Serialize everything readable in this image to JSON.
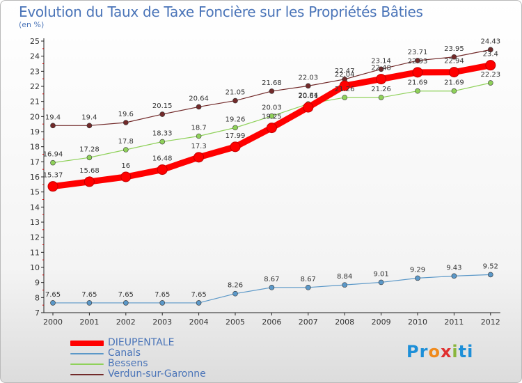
{
  "title": "Evolution du Taux de Taxe Foncière sur les Propriétés Bâties",
  "subtitle": "(en %)",
  "logo": [
    "Pr",
    "o",
    "x",
    "i",
    "ti"
  ],
  "chart_data": {
    "type": "line",
    "x": [
      "2000",
      "2001",
      "2002",
      "2003",
      "2004",
      "2005",
      "2006",
      "2007",
      "2008",
      "2009",
      "2010",
      "2011",
      "2012"
    ],
    "ylim": [
      7,
      25
    ],
    "yticks": [
      "7",
      "8",
      "9",
      "10",
      "11",
      "12",
      "13",
      "14",
      "15",
      "16",
      "17",
      "18",
      "19",
      "20",
      "21",
      "22",
      "23",
      "24",
      "25"
    ],
    "grid": false,
    "legend_position": "bottom-left",
    "series": [
      {
        "name": "DIEUPENTALE",
        "color": "#ff0000",
        "values": [
          15.37,
          15.68,
          16,
          16.48,
          17.3,
          17.99,
          19.25,
          20.61,
          22.04,
          22.48,
          22.93,
          22.94,
          23.4
        ],
        "labels": [
          "15.37",
          "15.68",
          "16",
          "16.48",
          "17.3",
          "17.99",
          "19.25",
          "20.61",
          "22.04",
          "22.48",
          "22.93",
          "22.94",
          "23.4"
        ]
      },
      {
        "name": "Canals",
        "color": "#5b98c8",
        "values": [
          7.65,
          7.65,
          7.65,
          7.65,
          7.65,
          8.26,
          8.67,
          8.67,
          8.84,
          9.01,
          9.29,
          9.43,
          9.52
        ],
        "labels": [
          "7.65",
          "7.65",
          "7.65",
          "7.65",
          "7.65",
          "8.26",
          "8.67",
          "8.67",
          "8.84",
          "9.01",
          "9.29",
          "9.43",
          "9.52"
        ]
      },
      {
        "name": "Bessens",
        "color": "#8fd15a",
        "values": [
          16.94,
          17.28,
          17.8,
          18.33,
          18.7,
          19.26,
          20.03,
          20.84,
          21.26,
          21.26,
          21.69,
          21.69,
          22.23
        ],
        "labels": [
          "16.94",
          "17.28",
          "17.8",
          "18.33",
          "18.7",
          "19.26",
          "20.03",
          "20.84",
          "21.26",
          "21.26",
          "21.69",
          "21.69",
          "22.23"
        ]
      },
      {
        "name": "Verdun-sur-Garonne",
        "color": "#722a2a",
        "values": [
          19.4,
          19.4,
          19.6,
          20.15,
          20.64,
          21.05,
          21.68,
          22.03,
          22.47,
          23.14,
          23.71,
          23.95,
          24.43
        ],
        "labels": [
          "19.4",
          "19.4",
          "19.6",
          "20.15",
          "20.64",
          "21.05",
          "21.68",
          "22.03",
          "22.47",
          "23.14",
          "23.71",
          "23.95",
          "24.43"
        ]
      }
    ]
  }
}
